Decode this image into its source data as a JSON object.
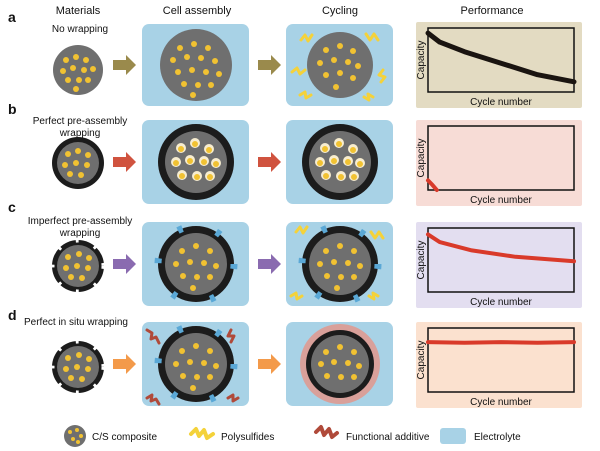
{
  "headers": [
    "Materials",
    "Cell assembly",
    "Cycling",
    "Performance"
  ],
  "rows": [
    {
      "letter": "a",
      "title_lines": [
        "No wrapping"
      ],
      "arrow_color": "#9a8a4c",
      "panel_bg": "#e3dbc2",
      "curve_color": "#1a1410"
    },
    {
      "letter": "b",
      "title_lines": [
        "Perfect pre-assembly",
        "wrapping"
      ],
      "arrow_color": "#d0533f",
      "panel_bg": "#f7dcd6",
      "curve_color": "#d93a2a"
    },
    {
      "letter": "c",
      "title_lines": [
        "Imperfect pre-assembly",
        "wrapping"
      ],
      "arrow_color": "#8a6bb0",
      "panel_bg": "#e3def0",
      "curve_color": "#d93a2a"
    },
    {
      "letter": "d",
      "title_lines": [
        "Perfect in situ wrapping"
      ],
      "arrow_color": "#f39a4a",
      "panel_bg": "#fbe1cf",
      "curve_color": "#d93a2a"
    }
  ],
  "axes": {
    "y_label": "Capacity",
    "x_label": "Cycle number"
  },
  "legend": [
    {
      "label": "C/S composite",
      "icon": "cs-composite-icon"
    },
    {
      "label": "Polysulfides",
      "icon": "polysulfide-icon"
    },
    {
      "label": "Functional additive",
      "icon": "functional-additive-icon"
    },
    {
      "label": "Electrolyte",
      "icon": "electrolyte-icon"
    }
  ],
  "colors": {
    "electrolyte": "#a8d2e6",
    "particle_core": "#6f6f6f",
    "sulfur": "#f1c232",
    "polysulfide": "#f4d23a",
    "additive": "#b04a3a",
    "shell": "#1c1c1c",
    "in_situ_shell": "#d9a09a"
  }
}
